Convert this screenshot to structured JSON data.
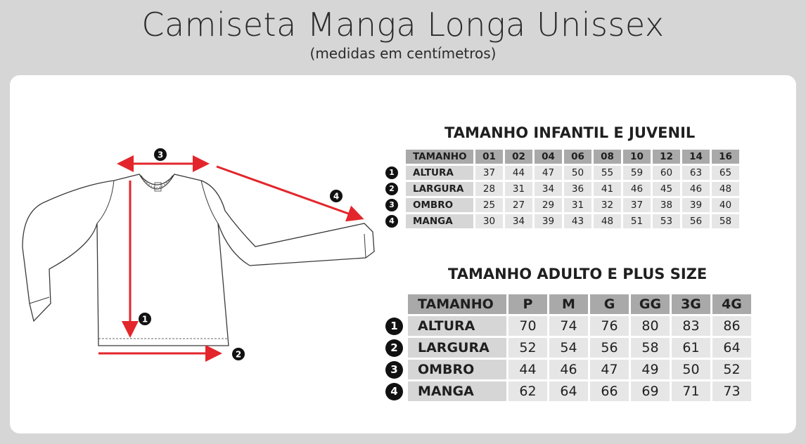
{
  "header": {
    "title": "Camiseta Manga Longa Unissex",
    "subtitle": "(medidas em centímetros)"
  },
  "diagram": {
    "markers": [
      "1",
      "2",
      "3",
      "4"
    ],
    "arrow_color": "#e3262b"
  },
  "infantil": {
    "title": "TAMANHO INFANTIL E JUVENIL",
    "header_label": "TAMANHO",
    "columns": [
      "01",
      "02",
      "04",
      "06",
      "08",
      "10",
      "12",
      "14",
      "16"
    ],
    "rows": [
      {
        "num": "1",
        "label": "ALTURA",
        "values": [
          "37",
          "44",
          "47",
          "50",
          "55",
          "59",
          "60",
          "63",
          "65"
        ]
      },
      {
        "num": "2",
        "label": "LARGURA",
        "values": [
          "28",
          "31",
          "34",
          "36",
          "41",
          "46",
          "45",
          "46",
          "48"
        ]
      },
      {
        "num": "3",
        "label": "OMBRO",
        "values": [
          "25",
          "27",
          "29",
          "31",
          "32",
          "37",
          "38",
          "39",
          "40"
        ]
      },
      {
        "num": "4",
        "label": "MANGA",
        "values": [
          "30",
          "34",
          "39",
          "43",
          "48",
          "51",
          "53",
          "56",
          "58"
        ]
      }
    ]
  },
  "adulto": {
    "title": "TAMANHO ADULTO E PLUS SIZE",
    "header_label": "TAMANHO",
    "columns": [
      "P",
      "M",
      "G",
      "GG",
      "3G",
      "4G"
    ],
    "rows": [
      {
        "num": "1",
        "label": "ALTURA",
        "values": [
          "70",
          "74",
          "76",
          "80",
          "83",
          "86"
        ]
      },
      {
        "num": "2",
        "label": "LARGURA",
        "values": [
          "52",
          "54",
          "56",
          "58",
          "61",
          "64"
        ]
      },
      {
        "num": "3",
        "label": "OMBRO",
        "values": [
          "44",
          "46",
          "47",
          "49",
          "50",
          "52"
        ]
      },
      {
        "num": "4",
        "label": "MANGA",
        "values": [
          "62",
          "64",
          "66",
          "69",
          "71",
          "73"
        ]
      }
    ]
  }
}
